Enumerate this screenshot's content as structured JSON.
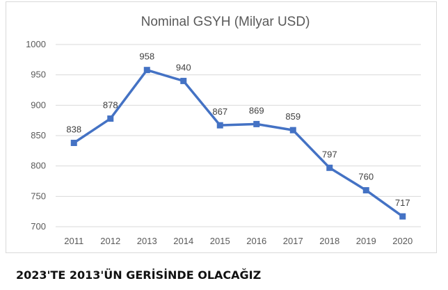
{
  "chart_data": {
    "type": "line",
    "title": "Nominal GSYH (Milyar USD)",
    "categories": [
      "2011",
      "2012",
      "2013",
      "2014",
      "2015",
      "2016",
      "2017",
      "2018",
      "2019",
      "2020"
    ],
    "series": [
      {
        "values": [
          838,
          878,
          958,
          940,
          867,
          869,
          859,
          797,
          760,
          717
        ]
      }
    ],
    "ylim": [
      700,
      1000
    ],
    "yticks": [
      700,
      750,
      800,
      850,
      900,
      950,
      1000
    ],
    "ytick_labels": [
      "700",
      "750",
      "800",
      "850",
      "900",
      "950",
      "1000"
    ],
    "grid": true,
    "data_labels": true,
    "legend": "none",
    "colors": {
      "line": "#4472c4",
      "grid": "#d9d9d9",
      "text": "#595959",
      "title": "#595959"
    }
  },
  "caption": "2023'TE 2013'ÜN GERİSİNDE OLACAĞIZ"
}
